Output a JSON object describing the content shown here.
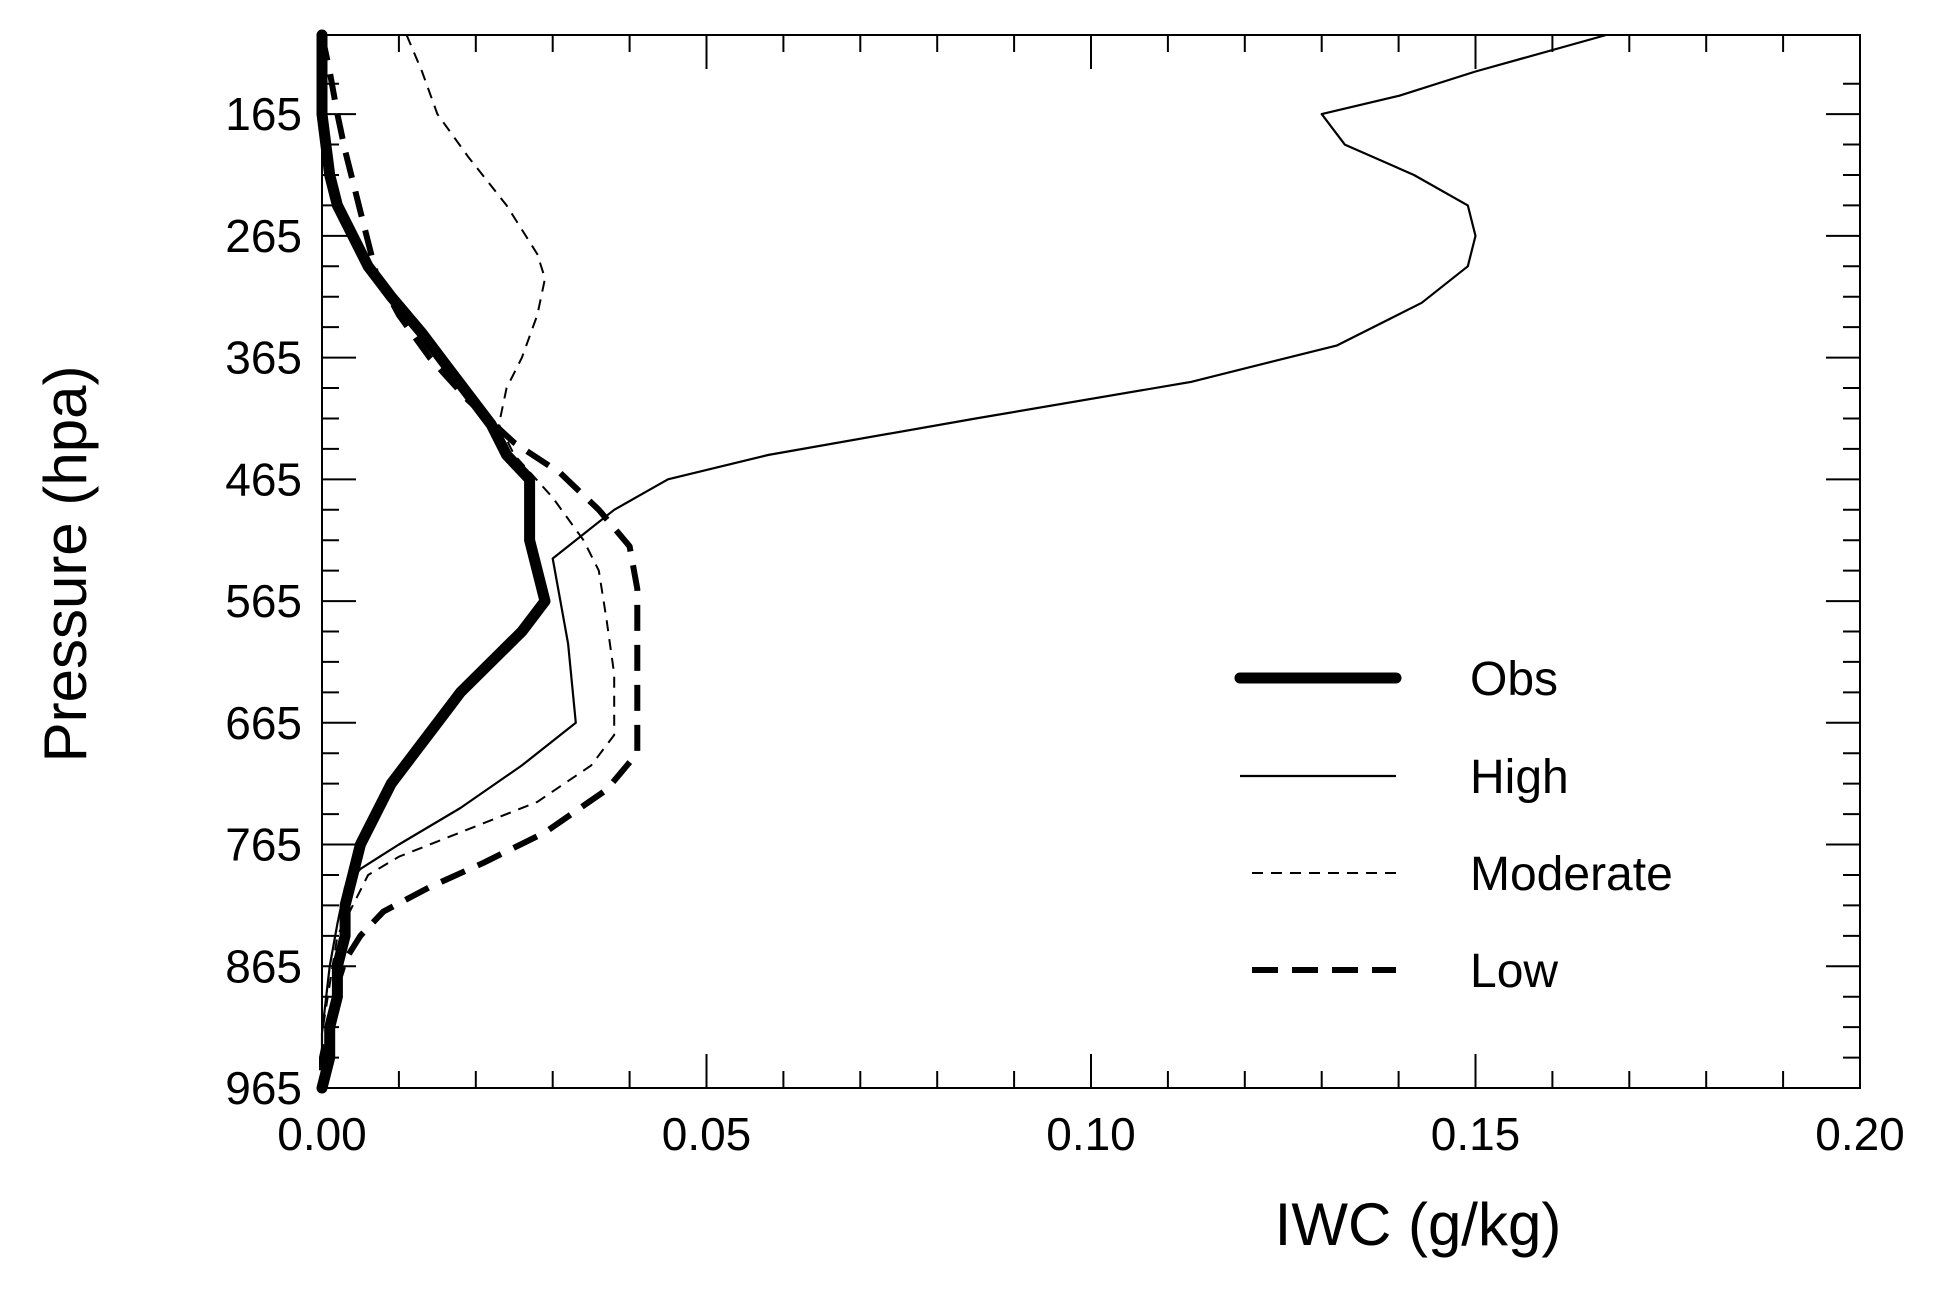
{
  "chart_data": {
    "type": "line",
    "title": "",
    "xlabel": "IWC  (g/kg)",
    "ylabel": "Pressure (hpa)",
    "xlim": [
      0.0,
      0.2
    ],
    "ylim": [
      100,
      965
    ],
    "y_inverted": true,
    "x_ticks": [
      {
        "value": 0.0,
        "label": "0.00"
      },
      {
        "value": 0.05,
        "label": "0.05"
      },
      {
        "value": 0.1,
        "label": "0.10"
      },
      {
        "value": 0.15,
        "label": "0.15"
      },
      {
        "value": 0.2,
        "label": "0.20"
      }
    ],
    "y_ticks": [
      {
        "value": 165,
        "label": "165"
      },
      {
        "value": 265,
        "label": "265"
      },
      {
        "value": 365,
        "label": "365"
      },
      {
        "value": 465,
        "label": "465"
      },
      {
        "value": 565,
        "label": "565"
      },
      {
        "value": 665,
        "label": "665"
      },
      {
        "value": 765,
        "label": "765"
      },
      {
        "value": 865,
        "label": "865"
      },
      {
        "value": 965,
        "label": "965"
      }
    ],
    "grid": false,
    "legend_position": "bottom-right",
    "series": [
      {
        "name": "Obs",
        "style": "thick-solid",
        "points": [
          [
            0.0,
            100
          ],
          [
            0.0,
            165
          ],
          [
            0.001,
            215
          ],
          [
            0.002,
            240
          ],
          [
            0.004,
            265
          ],
          [
            0.006,
            290
          ],
          [
            0.009,
            315
          ],
          [
            0.013,
            345
          ],
          [
            0.016,
            370
          ],
          [
            0.019,
            395
          ],
          [
            0.022,
            420
          ],
          [
            0.024,
            445
          ],
          [
            0.027,
            465
          ],
          [
            0.027,
            490
          ],
          [
            0.027,
            515
          ],
          [
            0.028,
            540
          ],
          [
            0.029,
            565
          ],
          [
            0.026,
            590
          ],
          [
            0.022,
            615
          ],
          [
            0.018,
            640
          ],
          [
            0.015,
            665
          ],
          [
            0.012,
            690
          ],
          [
            0.009,
            715
          ],
          [
            0.007,
            740
          ],
          [
            0.005,
            765
          ],
          [
            0.004,
            790
          ],
          [
            0.003,
            815
          ],
          [
            0.003,
            840
          ],
          [
            0.002,
            865
          ],
          [
            0.002,
            890
          ],
          [
            0.001,
            915
          ],
          [
            0.001,
            940
          ],
          [
            0.0,
            965
          ]
        ]
      },
      {
        "name": "High",
        "style": "thin-solid",
        "points": [
          [
            0.167,
            100
          ],
          [
            0.15,
            130
          ],
          [
            0.14,
            150
          ],
          [
            0.13,
            165
          ],
          [
            0.133,
            190
          ],
          [
            0.142,
            215
          ],
          [
            0.149,
            240
          ],
          [
            0.15,
            265
          ],
          [
            0.149,
            290
          ],
          [
            0.143,
            320
          ],
          [
            0.132,
            355
          ],
          [
            0.113,
            385
          ],
          [
            0.085,
            415
          ],
          [
            0.058,
            445
          ],
          [
            0.045,
            465
          ],
          [
            0.038,
            490
          ],
          [
            0.03,
            530
          ],
          [
            0.031,
            565
          ],
          [
            0.032,
            600
          ],
          [
            0.033,
            665
          ],
          [
            0.026,
            700
          ],
          [
            0.018,
            735
          ],
          [
            0.01,
            765
          ],
          [
            0.005,
            785
          ],
          [
            0.003,
            800
          ],
          [
            0.002,
            830
          ],
          [
            0.001,
            865
          ],
          [
            0.0,
            920
          ],
          [
            0.0,
            965
          ]
        ]
      },
      {
        "name": "Moderate",
        "style": "thin-dashed",
        "points": [
          [
            0.011,
            100
          ],
          [
            0.013,
            130
          ],
          [
            0.015,
            165
          ],
          [
            0.019,
            200
          ],
          [
            0.024,
            240
          ],
          [
            0.028,
            280
          ],
          [
            0.029,
            300
          ],
          [
            0.028,
            330
          ],
          [
            0.026,
            365
          ],
          [
            0.024,
            390
          ],
          [
            0.023,
            420
          ],
          [
            0.025,
            445
          ],
          [
            0.03,
            480
          ],
          [
            0.034,
            515
          ],
          [
            0.036,
            540
          ],
          [
            0.037,
            580
          ],
          [
            0.038,
            625
          ],
          [
            0.038,
            675
          ],
          [
            0.035,
            700
          ],
          [
            0.028,
            730
          ],
          [
            0.018,
            755
          ],
          [
            0.01,
            775
          ],
          [
            0.006,
            790
          ],
          [
            0.004,
            815
          ],
          [
            0.002,
            840
          ],
          [
            0.001,
            880
          ],
          [
            0.0,
            920
          ],
          [
            0.0,
            965
          ]
        ]
      },
      {
        "name": "Low",
        "style": "thick-dashed",
        "points": [
          [
            0.0,
            100
          ],
          [
            0.001,
            130
          ],
          [
            0.002,
            165
          ],
          [
            0.003,
            195
          ],
          [
            0.004,
            220
          ],
          [
            0.005,
            245
          ],
          [
            0.006,
            270
          ],
          [
            0.007,
            295
          ],
          [
            0.01,
            330
          ],
          [
            0.014,
            365
          ],
          [
            0.019,
            400
          ],
          [
            0.025,
            435
          ],
          [
            0.031,
            460
          ],
          [
            0.036,
            490
          ],
          [
            0.04,
            520
          ],
          [
            0.041,
            555
          ],
          [
            0.041,
            600
          ],
          [
            0.041,
            650
          ],
          [
            0.041,
            690
          ],
          [
            0.037,
            720
          ],
          [
            0.029,
            755
          ],
          [
            0.021,
            780
          ],
          [
            0.014,
            800
          ],
          [
            0.008,
            820
          ],
          [
            0.005,
            840
          ],
          [
            0.003,
            860
          ],
          [
            0.002,
            880
          ],
          [
            0.001,
            910
          ],
          [
            0.0,
            940
          ],
          [
            0.0,
            965
          ]
        ]
      }
    ]
  }
}
